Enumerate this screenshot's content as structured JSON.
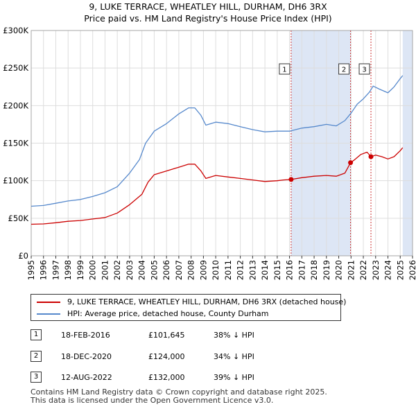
{
  "title": {
    "line1": "9, LUKE TERRACE, WHEATLEY HILL, DURHAM, DH6 3RX",
    "line2": "Price paid vs. HM Land Registry's House Price Index (HPI)"
  },
  "chart_data": {
    "type": "line",
    "title": "9, LUKE TERRACE, WHEATLEY HILL, DURHAM, DH6 3RX — Price paid vs. HM Land Registry's House Price Index (HPI)",
    "xlim": [
      1995,
      2026
    ],
    "ylim": [
      0,
      300000
    ],
    "x_ticks": [
      1995,
      1996,
      1997,
      1998,
      1999,
      2000,
      2001,
      2002,
      2003,
      2004,
      2005,
      2006,
      2007,
      2008,
      2009,
      2010,
      2011,
      2012,
      2013,
      2014,
      2015,
      2016,
      2017,
      2018,
      2019,
      2020,
      2021,
      2022,
      2023,
      2024,
      2025,
      2026
    ],
    "y_ticks": [
      {
        "value": 0,
        "label": "£0"
      },
      {
        "value": 50000,
        "label": "£50K"
      },
      {
        "value": 100000,
        "label": "£100K"
      },
      {
        "value": 150000,
        "label": "£150K"
      },
      {
        "value": 200000,
        "label": "£200K"
      },
      {
        "value": 250000,
        "label": "£250K"
      },
      {
        "value": 300000,
        "label": "£300K"
      }
    ],
    "grid": true,
    "colors": {
      "property": "#cc0000",
      "hpi": "#5588cc",
      "shade": "#dde6f5",
      "vline": "#cc3333",
      "grid": "#dddddd",
      "axis": "#000000"
    },
    "series": [
      {
        "name": "9, LUKE TERRACE, WHEATLEY HILL, DURHAM, DH6 3RX (detached house)",
        "color": "#cc0000",
        "points": [
          [
            1995.0,
            42000
          ],
          [
            1996.0,
            42500
          ],
          [
            1997.0,
            44000
          ],
          [
            1998.0,
            46000
          ],
          [
            1999.0,
            47000
          ],
          [
            2000.0,
            49000
          ],
          [
            2001.0,
            51000
          ],
          [
            2002.0,
            57000
          ],
          [
            2003.0,
            68000
          ],
          [
            2004.0,
            82000
          ],
          [
            2004.5,
            98000
          ],
          [
            2005.0,
            108000
          ],
          [
            2006.0,
            113000
          ],
          [
            2007.0,
            118000
          ],
          [
            2007.8,
            122000
          ],
          [
            2008.3,
            122000
          ],
          [
            2008.8,
            113000
          ],
          [
            2009.2,
            103000
          ],
          [
            2010.0,
            107000
          ],
          [
            2011.0,
            105000
          ],
          [
            2012.0,
            103000
          ],
          [
            2013.0,
            101000
          ],
          [
            2014.0,
            99000
          ],
          [
            2015.0,
            100000
          ],
          [
            2015.5,
            101000
          ],
          [
            2016.13,
            101645
          ],
          [
            2017.0,
            104000
          ],
          [
            2018.0,
            106000
          ],
          [
            2019.0,
            107000
          ],
          [
            2019.8,
            106000
          ],
          [
            2020.5,
            110000
          ],
          [
            2020.96,
            124000
          ],
          [
            2021.3,
            128000
          ],
          [
            2021.8,
            135000
          ],
          [
            2022.3,
            138000
          ],
          [
            2022.62,
            132000
          ],
          [
            2023.0,
            134000
          ],
          [
            2023.5,
            132000
          ],
          [
            2024.0,
            129000
          ],
          [
            2024.5,
            132000
          ],
          [
            2025.0,
            140000
          ],
          [
            2025.2,
            144000
          ]
        ]
      },
      {
        "name": "HPI: Average price, detached house, County Durham",
        "color": "#5588cc",
        "points": [
          [
            1995.0,
            66000
          ],
          [
            1996.0,
            67000
          ],
          [
            1997.0,
            70000
          ],
          [
            1998.0,
            73000
          ],
          [
            1999.0,
            75000
          ],
          [
            2000.0,
            79000
          ],
          [
            2001.0,
            84000
          ],
          [
            2002.0,
            92000
          ],
          [
            2003.0,
            110000
          ],
          [
            2003.8,
            128000
          ],
          [
            2004.3,
            150000
          ],
          [
            2005.0,
            166000
          ],
          [
            2006.0,
            176000
          ],
          [
            2007.0,
            189000
          ],
          [
            2007.8,
            197000
          ],
          [
            2008.3,
            197000
          ],
          [
            2008.8,
            187000
          ],
          [
            2009.2,
            174000
          ],
          [
            2010.0,
            178000
          ],
          [
            2011.0,
            176000
          ],
          [
            2012.0,
            172000
          ],
          [
            2013.0,
            168000
          ],
          [
            2014.0,
            165000
          ],
          [
            2015.0,
            166000
          ],
          [
            2016.0,
            166000
          ],
          [
            2017.0,
            170000
          ],
          [
            2018.0,
            172000
          ],
          [
            2019.0,
            175000
          ],
          [
            2019.8,
            173000
          ],
          [
            2020.5,
            180000
          ],
          [
            2021.0,
            190000
          ],
          [
            2021.5,
            202000
          ],
          [
            2022.0,
            209000
          ],
          [
            2022.5,
            218000
          ],
          [
            2022.8,
            226000
          ],
          [
            2023.3,
            222000
          ],
          [
            2024.0,
            217000
          ],
          [
            2024.5,
            225000
          ],
          [
            2025.0,
            236000
          ],
          [
            2025.2,
            240000
          ]
        ]
      }
    ],
    "shaded_ranges": [
      [
        2016.13,
        2020.96
      ],
      [
        2025.2,
        2026
      ]
    ],
    "markers": [
      {
        "label": "1",
        "x": 2016.13,
        "y": 101645
      },
      {
        "label": "2",
        "x": 2020.96,
        "y": 124000
      },
      {
        "label": "3",
        "x": 2022.62,
        "y": 132000
      }
    ]
  },
  "legend": {
    "property_label": "9, LUKE TERRACE, WHEATLEY HILL, DURHAM, DH6 3RX (detached house)",
    "hpi_label": "HPI: Average price, detached house, County Durham"
  },
  "sales": [
    {
      "num": "1",
      "date": "18-FEB-2016",
      "price": "£101,645",
      "hpi": "38% ↓ HPI"
    },
    {
      "num": "2",
      "date": "18-DEC-2020",
      "price": "£124,000",
      "hpi": "34% ↓ HPI"
    },
    {
      "num": "3",
      "date": "12-AUG-2022",
      "price": "£132,000",
      "hpi": "39% ↓ HPI"
    }
  ],
  "footer": {
    "line1": "Contains HM Land Registry data © Crown copyright and database right 2025.",
    "line2": "This data is licensed under the Open Government Licence v3.0."
  }
}
